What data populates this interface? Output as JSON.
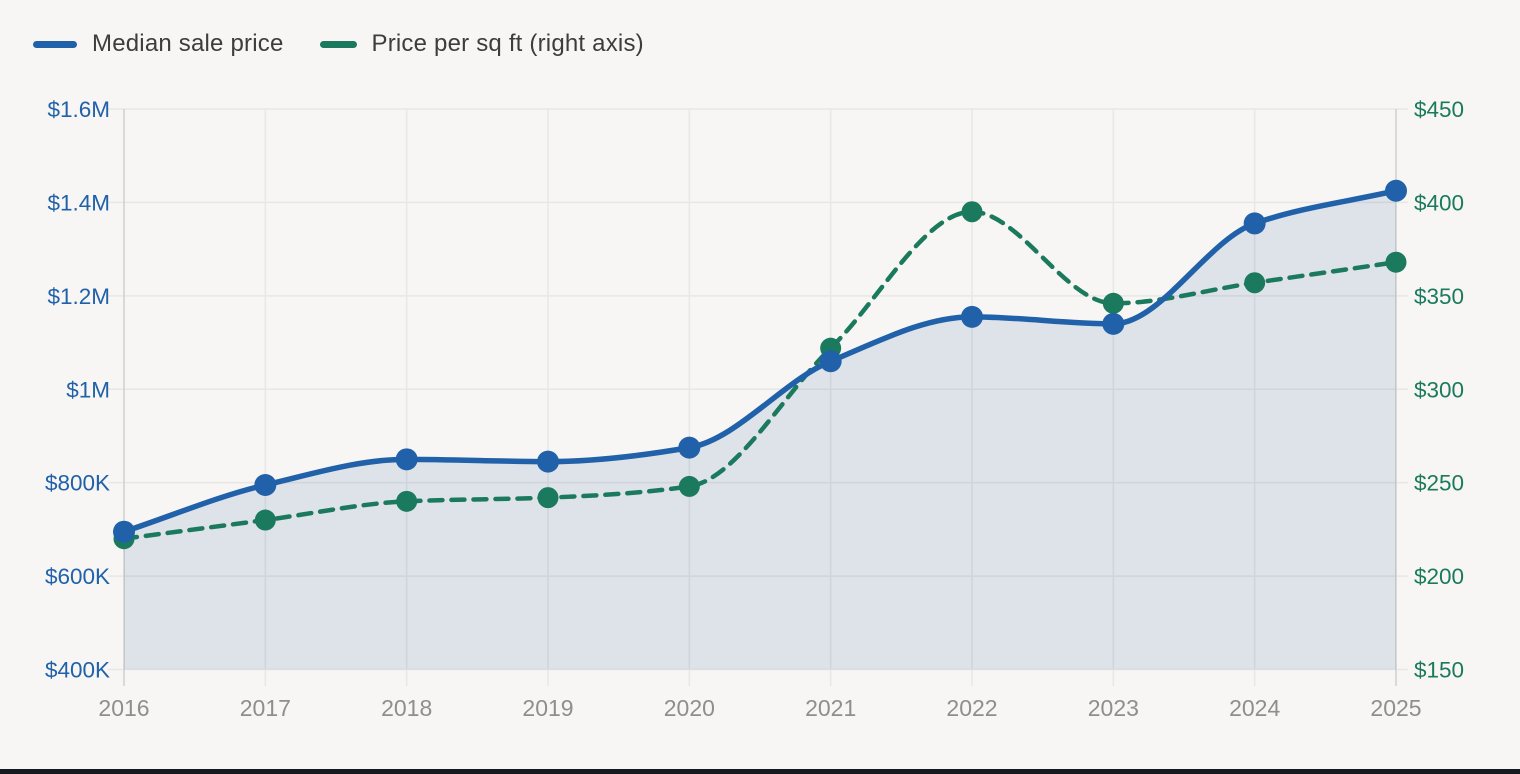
{
  "legend": {
    "items": [
      {
        "label": "Median sale price",
        "color": "#2061a9"
      },
      {
        "label": "Price per sq ft (right axis)",
        "color": "#1b7a5d"
      }
    ]
  },
  "chart_data": {
    "type": "line",
    "title": "",
    "x_categories": [
      "2016",
      "2017",
      "2018",
      "2019",
      "2020",
      "2021",
      "2022",
      "2023",
      "2024",
      "2025"
    ],
    "series": [
      {
        "name": "Median sale price",
        "axis": "left",
        "color": "#2061a9",
        "line_style": "solid",
        "area_fill": true,
        "area_color": "rgba(44,86,160,0.12)",
        "values": [
          695000,
          795000,
          850000,
          845000,
          875000,
          1060000,
          1155000,
          1140000,
          1355000,
          1425000
        ]
      },
      {
        "name": "Price per sq ft (right axis)",
        "axis": "right",
        "color": "#1b7a5d",
        "line_style": "dashed",
        "area_fill": false,
        "values": [
          220,
          230,
          240,
          242,
          248,
          322,
          395,
          346,
          357,
          368
        ]
      }
    ],
    "left_axis": {
      "min": 400000,
      "max": 1600000,
      "tick_values": [
        400000,
        600000,
        800000,
        1000000,
        1200000,
        1400000,
        1600000
      ],
      "tick_labels": [
        "$400K",
        "$600K",
        "$800K",
        "$1M",
        "$1.2M",
        "$1.4M",
        "$1.6M"
      ],
      "color": "#2061a9"
    },
    "right_axis": {
      "min": 150,
      "max": 450,
      "tick_values": [
        150,
        200,
        250,
        300,
        350,
        400,
        450
      ],
      "tick_labels": [
        "$150",
        "$200",
        "$250",
        "$300",
        "$350",
        "$400",
        "$450"
      ],
      "color": "#1b7a5d"
    },
    "x_axis": {
      "label_color": "#8e8e8b"
    },
    "grid": true,
    "legend_position": "top-left",
    "colors": {
      "background": "#f7f6f4",
      "gridline": "#e7e7e4",
      "plot_edge_line": "#cfcfcc"
    }
  }
}
